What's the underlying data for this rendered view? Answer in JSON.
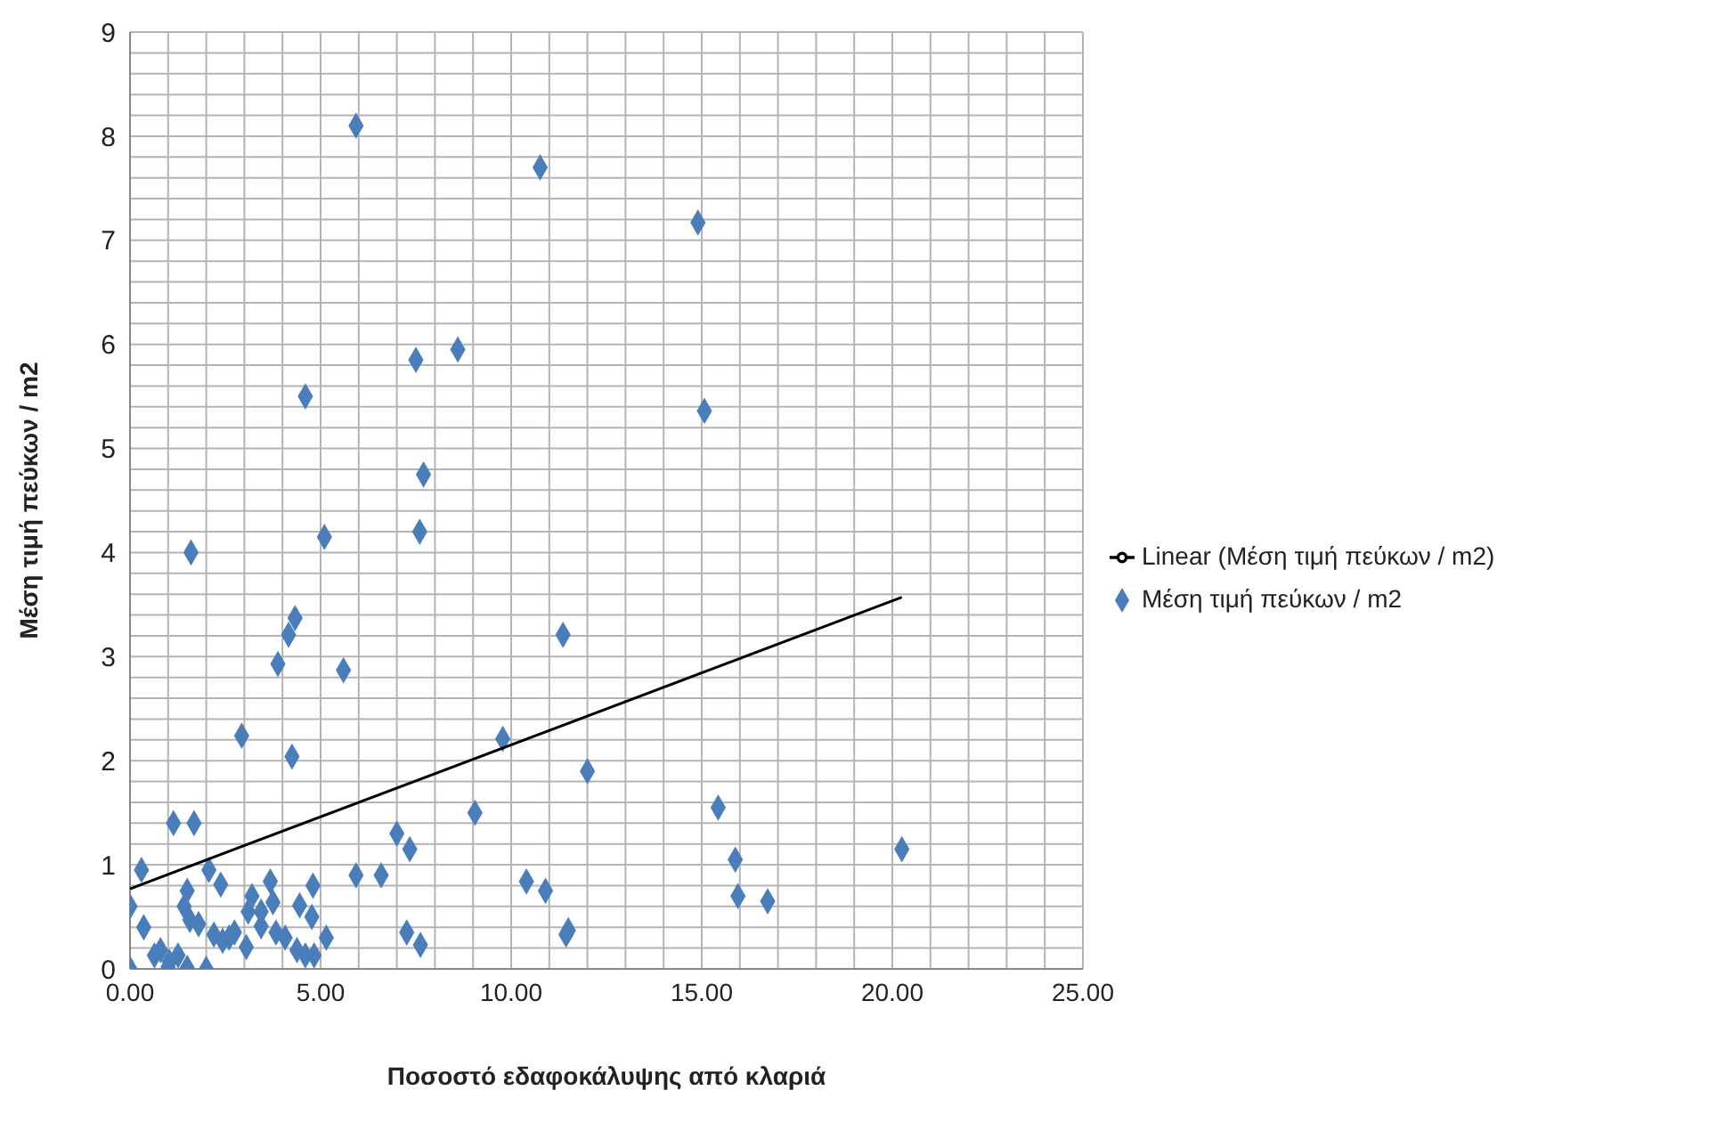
{
  "chart_data": {
    "type": "scatter",
    "xlabel": "Ποσοστό εδαφοκάλυψης από κλαριά",
    "ylabel": "Μέση τιμή πεύκων / m2",
    "series": [
      {
        "name": "Μέση τιμή πεύκων / m2",
        "color": "#4a7ebb",
        "marker": "diamond",
        "x": [
          1.6,
          5.93,
          10.76,
          7.5,
          8.6,
          4.6,
          7.7,
          7.6,
          5.1,
          4.33,
          4.16,
          11.36,
          3.88,
          5.6,
          14.9,
          15.07,
          12.0,
          15.43,
          15.88,
          20.25,
          15.95,
          16.73,
          10.9,
          11.44,
          11.5,
          2.93,
          4.25,
          1.14,
          1.68,
          9.78,
          9.05,
          7.0,
          7.34,
          0.3,
          0.0,
          0.36,
          0.0,
          2.07,
          2.38,
          5.93,
          6.59,
          3.68,
          4.8,
          10.4,
          7.26,
          7.62,
          1.5,
          1.42,
          1.57,
          1.8,
          2.2,
          2.43,
          2.74,
          3.05,
          3.2,
          3.1,
          3.44,
          3.75,
          3.83,
          4.07,
          4.45,
          4.77,
          5.15,
          4.6,
          4.83,
          4.38,
          0.64,
          0.8,
          1.03,
          1.26,
          1.0,
          1.5,
          2.0,
          2.6,
          3.44
        ],
        "values": [
          4.0,
          8.1,
          7.7,
          5.85,
          5.95,
          5.5,
          4.75,
          4.2,
          4.15,
          3.37,
          3.21,
          3.21,
          2.93,
          2.87,
          7.17,
          5.36,
          1.9,
          1.55,
          1.05,
          1.15,
          0.7,
          0.65,
          0.75,
          0.33,
          0.37,
          2.24,
          2.04,
          1.4,
          1.4,
          2.21,
          1.5,
          1.3,
          1.15,
          0.95,
          0.6,
          0.4,
          0.0,
          0.95,
          0.81,
          0.9,
          0.9,
          0.84,
          0.8,
          0.84,
          0.35,
          0.23,
          0.75,
          0.6,
          0.47,
          0.43,
          0.33,
          0.27,
          0.35,
          0.21,
          0.7,
          0.55,
          0.41,
          0.64,
          0.35,
          0.3,
          0.61,
          0.5,
          0.3,
          0.13,
          0.13,
          0.18,
          0.13,
          0.18,
          0.07,
          0.13,
          0.02,
          0.01,
          0.0,
          0.3,
          0.55
        ]
      },
      {
        "name": "Linear (Μέση τιμή πεύκων / m2)",
        "type": "line",
        "color": "#000000",
        "marker": "none",
        "x": [
          0,
          20.25
        ],
        "values": [
          0.77,
          3.57
        ]
      }
    ],
    "xlim": [
      0,
      25
    ],
    "xticks": [
      {
        "value": 0,
        "label": "0.00"
      },
      {
        "value": 1,
        "label": null
      },
      {
        "value": 2,
        "label": null
      },
      {
        "value": 3,
        "label": null
      },
      {
        "value": 4,
        "label": null
      },
      {
        "value": 5,
        "label": "5.00"
      },
      {
        "value": 6,
        "label": null
      },
      {
        "value": 7,
        "label": null
      },
      {
        "value": 8,
        "label": null
      },
      {
        "value": 9,
        "label": null
      },
      {
        "value": 10,
        "label": "10.00"
      },
      {
        "value": 11,
        "label": null
      },
      {
        "value": 12,
        "label": null
      },
      {
        "value": 13,
        "label": null
      },
      {
        "value": 14,
        "label": null
      },
      {
        "value": 15,
        "label": "15.00"
      },
      {
        "value": 16,
        "label": null
      },
      {
        "value": 17,
        "label": null
      },
      {
        "value": 18,
        "label": null
      },
      {
        "value": 19,
        "label": null
      },
      {
        "value": 20,
        "label": "20.00"
      },
      {
        "value": 21,
        "label": null
      },
      {
        "value": 22,
        "label": null
      },
      {
        "value": 23,
        "label": null
      },
      {
        "value": 24,
        "label": null
      },
      {
        "value": 25,
        "label": "25.00"
      }
    ],
    "ylim": [
      0,
      9
    ],
    "yticks": [
      0,
      {
        "value": 0.2,
        "label": null
      },
      {
        "value": 0.4,
        "label": null
      },
      {
        "value": 0.6,
        "label": null
      },
      {
        "value": 0.8,
        "label": null
      },
      1,
      {
        "value": 1.2,
        "label": null
      },
      {
        "value": 1.4,
        "label": null
      },
      {
        "value": 1.6,
        "label": null
      },
      {
        "value": 1.8,
        "label": null
      },
      2,
      {
        "value": 2.2,
        "label": null
      },
      {
        "value": 2.4,
        "label": null
      },
      {
        "value": 2.6,
        "label": null
      },
      {
        "value": 2.8,
        "label": null
      },
      3,
      {
        "value": 3.2,
        "label": null
      },
      {
        "value": 3.4,
        "label": null
      },
      {
        "value": 3.6,
        "label": null
      },
      {
        "value": 3.8,
        "label": null
      },
      4,
      {
        "value": 4.2,
        "label": null
      },
      {
        "value": 4.4,
        "label": null
      },
      {
        "value": 4.6,
        "label": null
      },
      {
        "value": 4.8,
        "label": null
      },
      5,
      {
        "value": 5.2,
        "label": null
      },
      {
        "value": 5.4,
        "label": null
      },
      {
        "value": 5.6,
        "label": null
      },
      {
        "value": 5.8,
        "label": null
      },
      6,
      {
        "value": 6.2,
        "label": null
      },
      {
        "value": 6.4,
        "label": null
      },
      {
        "value": 6.6,
        "label": null
      },
      {
        "value": 6.8,
        "label": null
      },
      7,
      {
        "value": 7.2,
        "label": null
      },
      {
        "value": 7.4,
        "label": null
      },
      {
        "value": 7.6,
        "label": null
      },
      {
        "value": 7.8,
        "label": null
      },
      8,
      {
        "value": 8.2,
        "label": null
      },
      {
        "value": 8.4,
        "label": null
      },
      {
        "value": 8.6,
        "label": null
      },
      {
        "value": 8.8,
        "label": null
      },
      9
    ],
    "grid": true,
    "legend": "right"
  }
}
